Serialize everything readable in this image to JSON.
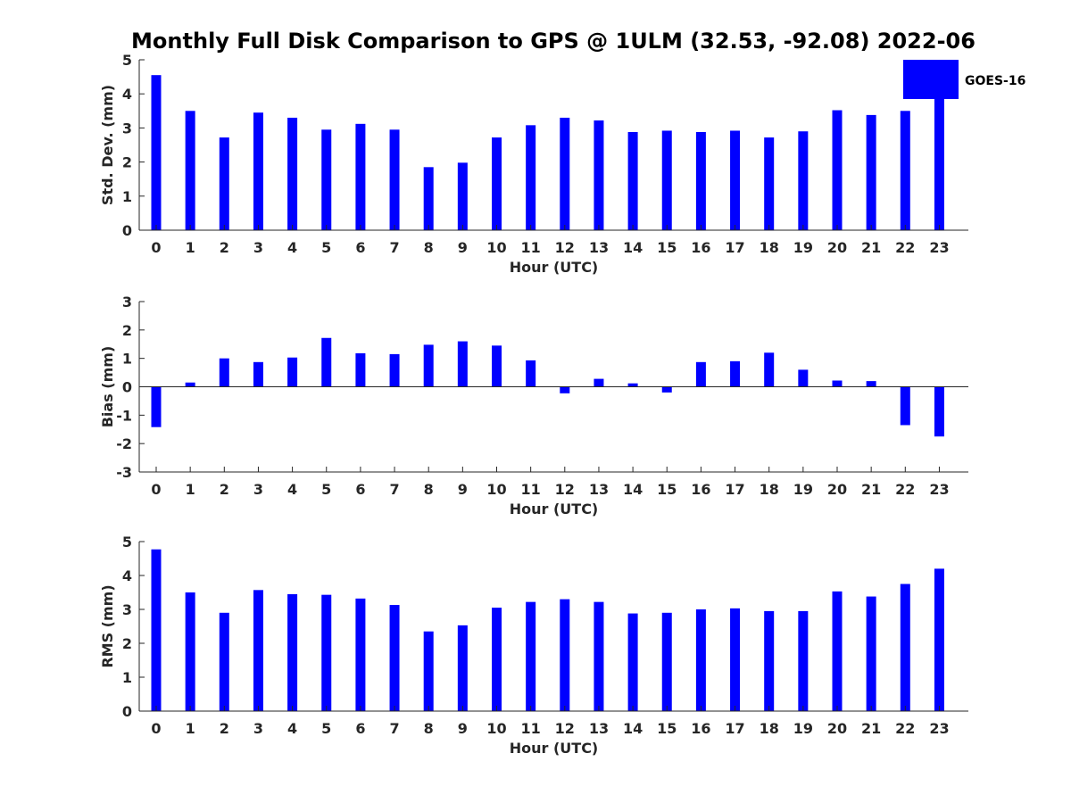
{
  "title": "Monthly Full Disk Comparison to GPS @ 1ULM (32.53, -92.08) 2022-06",
  "legend": {
    "label": "GOES-16",
    "color": "#0000ff"
  },
  "bar_color": "#0000ff",
  "chart_data": [
    {
      "type": "bar",
      "title": "Monthly Full Disk Comparison to GPS @ 1ULM (32.53, -92.08) 2022-06",
      "xlabel": "Hour (UTC)",
      "ylabel": "Std. Dev. (mm)",
      "ylim": [
        0,
        5
      ],
      "yticks": [
        "0",
        "1",
        "2",
        "3",
        "4",
        "5"
      ],
      "categories": [
        "0",
        "1",
        "2",
        "3",
        "4",
        "5",
        "6",
        "7",
        "8",
        "9",
        "10",
        "11",
        "12",
        "13",
        "14",
        "15",
        "16",
        "17",
        "18",
        "19",
        "20",
        "21",
        "22",
        "23"
      ],
      "series": [
        {
          "name": "GOES-16",
          "values": [
            4.55,
            3.5,
            2.72,
            3.45,
            3.3,
            2.95,
            3.12,
            2.95,
            1.85,
            1.98,
            2.72,
            3.08,
            3.3,
            3.22,
            2.88,
            2.92,
            2.88,
            2.92,
            2.72,
            2.9,
            3.52,
            3.38,
            3.5,
            4.0
          ]
        }
      ],
      "legend_position": "top-right",
      "grid": false
    },
    {
      "type": "bar",
      "xlabel": "Hour (UTC)",
      "ylabel": "Bias (mm)",
      "ylim": [
        -3,
        3
      ],
      "yticks": [
        "-3",
        "-2",
        "-1",
        "0",
        "1",
        "2",
        "3"
      ],
      "categories": [
        "0",
        "1",
        "2",
        "3",
        "4",
        "5",
        "6",
        "7",
        "8",
        "9",
        "10",
        "11",
        "12",
        "13",
        "14",
        "15",
        "16",
        "17",
        "18",
        "19",
        "20",
        "21",
        "22",
        "23"
      ],
      "series": [
        {
          "name": "GOES-16",
          "values": [
            -1.42,
            0.15,
            1.0,
            0.87,
            1.03,
            1.72,
            1.18,
            1.15,
            1.48,
            1.6,
            1.45,
            0.93,
            -0.23,
            0.28,
            0.12,
            -0.2,
            0.87,
            0.9,
            1.2,
            0.6,
            0.22,
            0.2,
            -1.35,
            -1.75
          ]
        }
      ],
      "grid": false
    },
    {
      "type": "bar",
      "xlabel": "Hour (UTC)",
      "ylabel": "RMS (mm)",
      "ylim": [
        0,
        5
      ],
      "yticks": [
        "0",
        "1",
        "2",
        "3",
        "4",
        "5"
      ],
      "categories": [
        "0",
        "1",
        "2",
        "3",
        "4",
        "5",
        "6",
        "7",
        "8",
        "9",
        "10",
        "11",
        "12",
        "13",
        "14",
        "15",
        "16",
        "17",
        "18",
        "19",
        "20",
        "21",
        "22",
        "23"
      ],
      "series": [
        {
          "name": "GOES-16",
          "values": [
            4.77,
            3.5,
            2.9,
            3.57,
            3.45,
            3.43,
            3.32,
            3.13,
            2.35,
            2.53,
            3.05,
            3.22,
            3.3,
            3.22,
            2.88,
            2.9,
            3.0,
            3.03,
            2.95,
            2.95,
            3.53,
            3.38,
            3.75,
            4.2
          ]
        }
      ],
      "grid": false
    }
  ]
}
